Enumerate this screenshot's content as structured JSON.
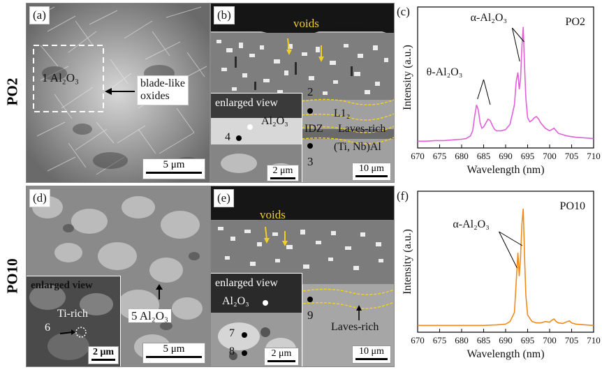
{
  "rows": [
    {
      "label": "PO2"
    },
    {
      "label": "PO10"
    }
  ],
  "panel_a": {
    "tag": "(a)",
    "region_label": "1  Al₂O₃",
    "callout": [
      "blade-like",
      "oxides"
    ],
    "scalebar": "5 μm"
  },
  "panel_b": {
    "tag": "(b)",
    "voids_label": "voids",
    "inset_title": "enlarged view",
    "inset_phase": "Al₂O₃",
    "inset_point": "4",
    "inset_scalebar": "2 μm",
    "point_2": "2",
    "point_3": "3",
    "layer_l12": "L1₂",
    "layer_idz": "IDZ",
    "layer_laves": "Laves-rich",
    "layer_tinbal": "(Ti, Nb)Al",
    "scalebar": "10 μm"
  },
  "panel_d": {
    "tag": "(d)",
    "inset_title": "enlarged view",
    "inset_phase": "Ti-rich",
    "inset_point": "6",
    "inset_scalebar": "2 μm",
    "point_label": "5  Al₂O₃",
    "scalebar": "5 μm"
  },
  "panel_e": {
    "tag": "(e)",
    "voids_label": "voids",
    "inset_title": "enlarged view",
    "inset_phase": "Al₂O₃",
    "point_7": "7",
    "point_8": "8",
    "point_9": "9",
    "inset_scalebar": "2 μm",
    "layer_laves": "Laves-rich",
    "scalebar": "10 μm"
  },
  "chart_data": [
    {
      "type": "line",
      "panel": "(c)",
      "title": "PO2",
      "xlabel": "Wavelength (nm)",
      "ylabel": "Intensity (a.u.)",
      "xlim": [
        670,
        710
      ],
      "xticks": [
        "670",
        "675",
        "680",
        "685",
        "690",
        "695",
        "700",
        "705",
        "710"
      ],
      "color": "#e060d8",
      "annotations": [
        "α-Al₂O₃",
        "θ-Al₂O₃"
      ],
      "x": [
        670,
        672,
        674,
        676,
        678,
        680,
        681,
        682,
        682.5,
        683,
        683.4,
        683.8,
        684.2,
        684.6,
        685,
        685.5,
        686,
        686.5,
        687,
        687.5,
        688,
        689,
        690,
        691,
        692,
        692.4,
        692.8,
        693.1,
        693.4,
        693.7,
        694,
        694.3,
        694.6,
        695,
        695.5,
        696,
        696.5,
        697,
        697.5,
        698,
        699,
        700,
        701,
        702,
        703,
        704,
        705,
        706,
        708,
        710
      ],
      "y": [
        0.02,
        0.02,
        0.025,
        0.025,
        0.03,
        0.035,
        0.04,
        0.06,
        0.1,
        0.22,
        0.3,
        0.26,
        0.16,
        0.12,
        0.13,
        0.16,
        0.19,
        0.18,
        0.14,
        0.11,
        0.1,
        0.1,
        0.11,
        0.15,
        0.3,
        0.48,
        0.55,
        0.42,
        0.5,
        0.75,
        0.9,
        0.6,
        0.35,
        0.2,
        0.17,
        0.18,
        0.2,
        0.21,
        0.19,
        0.16,
        0.12,
        0.1,
        0.12,
        0.08,
        0.07,
        0.06,
        0.055,
        0.05,
        0.045,
        0.04
      ]
    },
    {
      "type": "line",
      "panel": "(f)",
      "title": "PO10",
      "xlabel": "Wavelength (nm)",
      "ylabel": "Intensity (a.u.)",
      "xlim": [
        670,
        710
      ],
      "xticks": [
        "670",
        "675",
        "680",
        "685",
        "690",
        "695",
        "700",
        "705",
        "710"
      ],
      "color": "#f08a1a",
      "annotations": [
        "α-Al₂O₃"
      ],
      "x": [
        670,
        675,
        680,
        685,
        688,
        690,
        691,
        692,
        692.4,
        692.8,
        693.1,
        693.4,
        693.7,
        694,
        694.3,
        694.6,
        695,
        696,
        697,
        698,
        699,
        700,
        700.5,
        701,
        701.5,
        702,
        703,
        704,
        704.5,
        705,
        706,
        708,
        710
      ],
      "y": [
        0.02,
        0.02,
        0.02,
        0.02,
        0.025,
        0.03,
        0.05,
        0.12,
        0.35,
        0.58,
        0.4,
        0.55,
        0.8,
        0.92,
        0.55,
        0.25,
        0.1,
        0.05,
        0.04,
        0.04,
        0.05,
        0.045,
        0.06,
        0.07,
        0.05,
        0.04,
        0.035,
        0.05,
        0.055,
        0.04,
        0.03,
        0.025,
        0.02
      ]
    }
  ]
}
